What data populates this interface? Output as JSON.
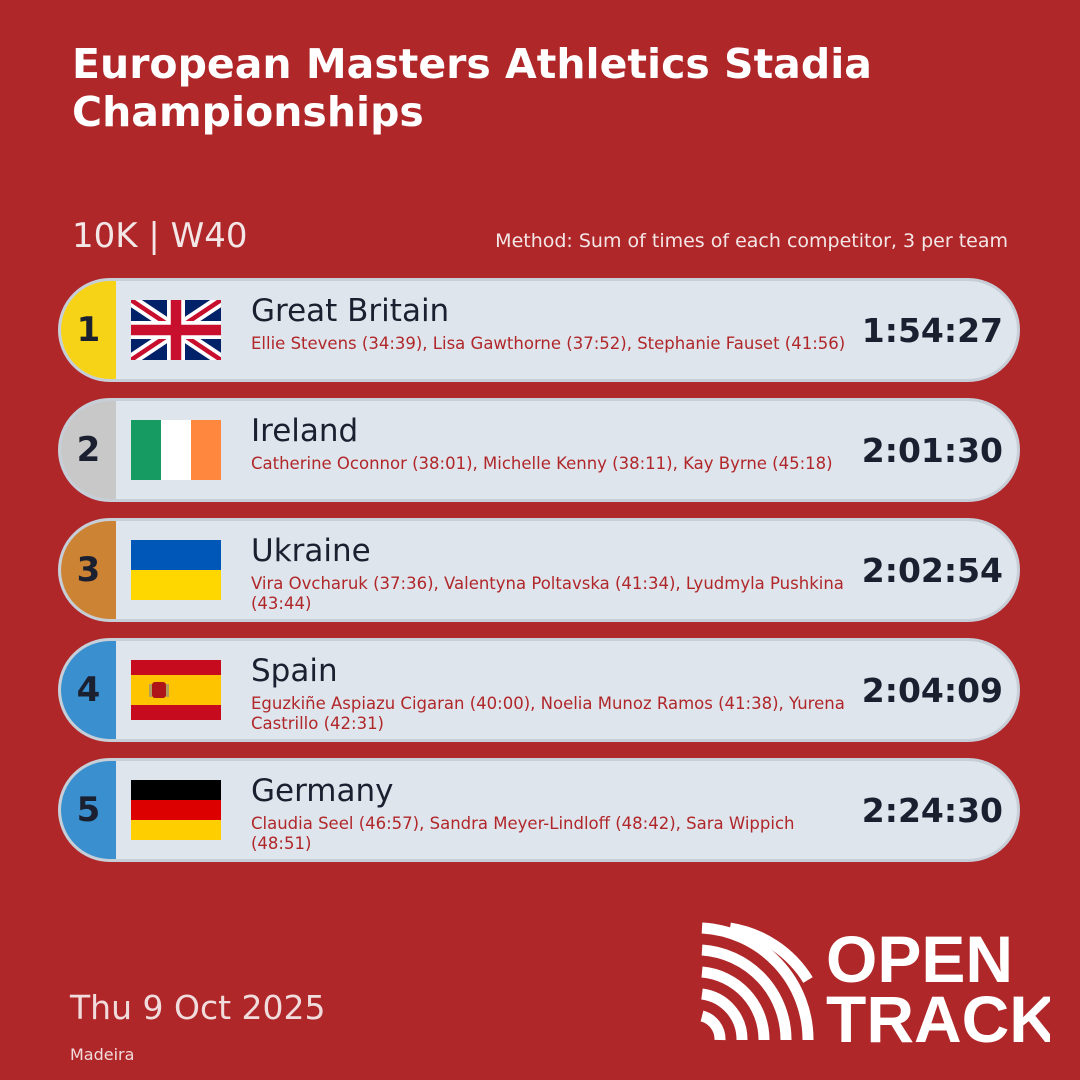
{
  "header": {
    "title": "European Masters Athletics Stadia Championships",
    "event": "10K | W40",
    "method": "Method: Sum of times of each competitor, 3 per team"
  },
  "results": [
    {
      "rank": "1",
      "team": "Great Britain",
      "athletes": "Ellie Stevens (34:39), Lisa Gawthorne (37:52), Stephanie Fauset (41:56)",
      "time": "1:54:27"
    },
    {
      "rank": "2",
      "team": "Ireland",
      "athletes": "Catherine Oconnor (38:01), Michelle Kenny (38:11), Kay Byrne (45:18)",
      "time": "2:01:30"
    },
    {
      "rank": "3",
      "team": "Ukraine",
      "athletes": "Vira Ovcharuk (37:36), Valentyna Poltavska (41:34), Lyudmyla Pushkina (43:44)",
      "time": "2:02:54"
    },
    {
      "rank": "4",
      "team": "Spain",
      "athletes": "Eguzkiñe Aspiazu Cigaran (40:00), Noelia Munoz Ramos (41:38), Yurena Castrillo (42:31)",
      "time": "2:04:09"
    },
    {
      "rank": "5",
      "team": "Germany",
      "athletes": "Claudia Seel (46:57), Sandra Meyer-Lindloff (48:42), Sara Wippich (48:51)",
      "time": "2:24:30"
    }
  ],
  "footer": {
    "date": "Thu 9 Oct 2025",
    "location": "Madeira",
    "logo_line1": "OPEN",
    "logo_line2": "TRACK"
  }
}
